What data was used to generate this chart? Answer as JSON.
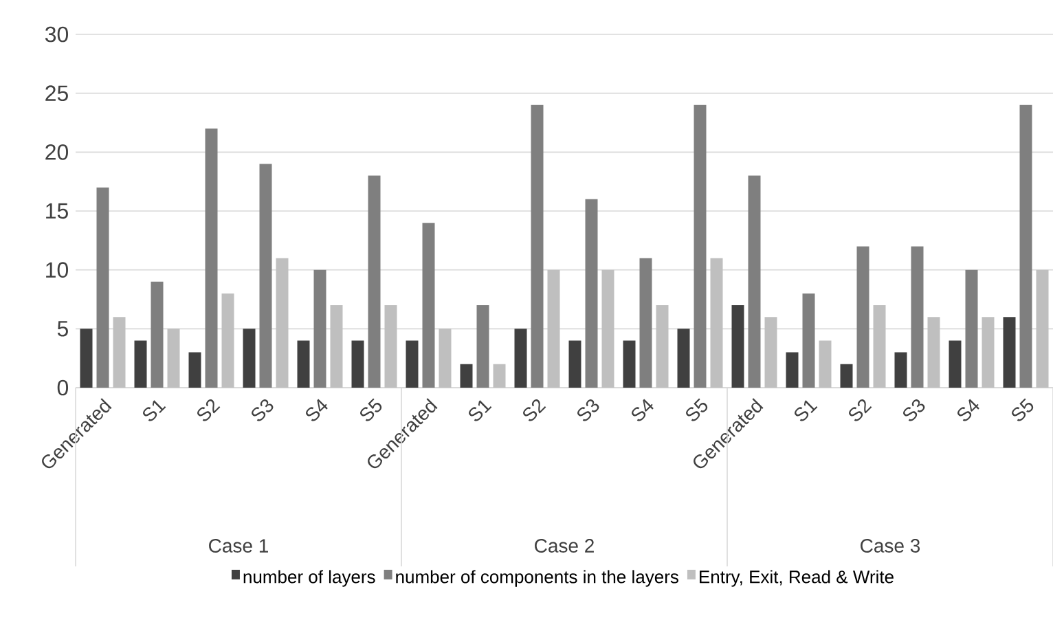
{
  "chart_data": {
    "type": "bar",
    "categories": [
      "Generated",
      "S1",
      "S2",
      "S3",
      "S4",
      "S5",
      "Generated",
      "S1",
      "S2",
      "S3",
      "S4",
      "S5",
      "Generated",
      "S1",
      "S2",
      "S3",
      "S4",
      "S5"
    ],
    "series": [
      {
        "name": "number of layers",
        "color": "#404040",
        "values": [
          5,
          4,
          3,
          5,
          4,
          4,
          4,
          2,
          5,
          4,
          4,
          5,
          7,
          3,
          2,
          3,
          4,
          6
        ]
      },
      {
        "name": "number of components in the layers",
        "color": "#7f7f7f",
        "values": [
          17,
          9,
          22,
          19,
          10,
          18,
          14,
          7,
          24,
          16,
          11,
          24,
          18,
          8,
          12,
          12,
          10,
          24
        ]
      },
      {
        "name": "Entry, Exit, Read & Write",
        "color": "#bfbfbf",
        "values": [
          6,
          5,
          8,
          11,
          7,
          7,
          5,
          2,
          10,
          10,
          7,
          11,
          6,
          4,
          7,
          6,
          6,
          10
        ]
      }
    ],
    "annotations": [
      "Case 1",
      "Case 2",
      "Case 3"
    ],
    "ylim": [
      0,
      30
    ],
    "yticks": [
      0,
      5,
      10,
      15,
      20,
      25,
      30
    ],
    "grid": "y",
    "legend": "bottom"
  }
}
